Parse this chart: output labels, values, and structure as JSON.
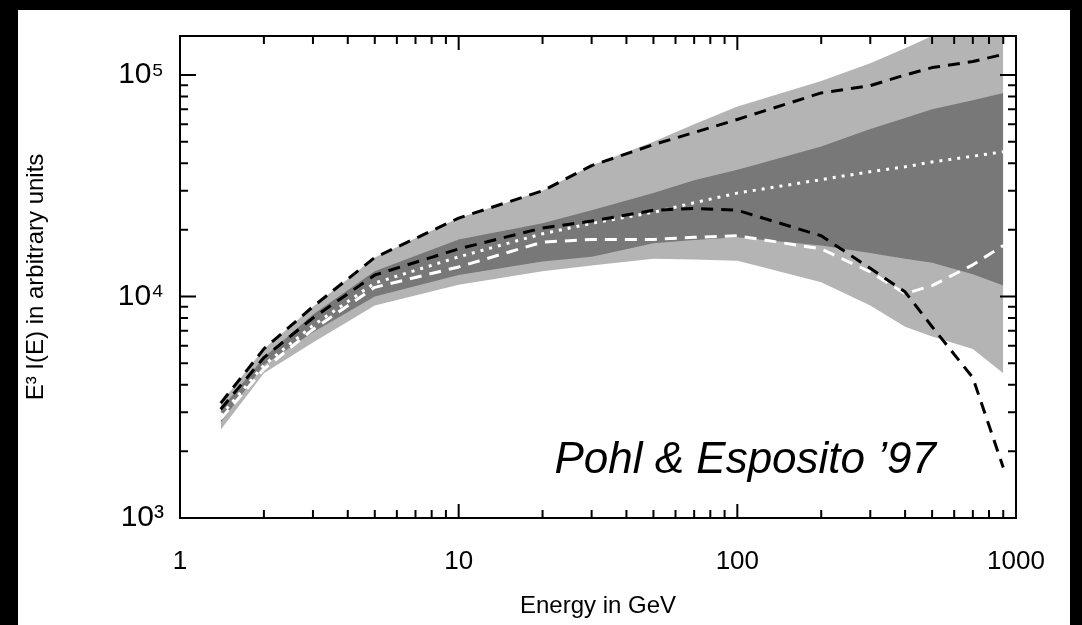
{
  "chart_data": {
    "type": "line",
    "xlabel": "Energy in GeV",
    "ylabel": "E³ I(E) in arbitrary units",
    "log": "xy",
    "x": [
      1.4,
      2,
      3,
      5,
      10,
      20,
      30,
      50,
      70,
      100,
      200,
      300,
      400,
      500,
      700,
      900
    ],
    "xlim": [
      1,
      1000
    ],
    "xticks": [
      1,
      {
        "value": 2,
        "label": null
      },
      {
        "value": 3,
        "label": null
      },
      {
        "value": 4,
        "label": null
      },
      {
        "value": 5,
        "label": null
      },
      {
        "value": 6,
        "label": null
      },
      {
        "value": 7,
        "label": null
      },
      {
        "value": 8,
        "label": null
      },
      {
        "value": 9,
        "label": null
      },
      10,
      {
        "value": 20,
        "label": null
      },
      {
        "value": 30,
        "label": null
      },
      {
        "value": 40,
        "label": null
      },
      {
        "value": 50,
        "label": null
      },
      {
        "value": 60,
        "label": null
      },
      {
        "value": 70,
        "label": null
      },
      {
        "value": 80,
        "label": null
      },
      {
        "value": 90,
        "label": null
      },
      100,
      {
        "value": 200,
        "label": null
      },
      {
        "value": 300,
        "label": null
      },
      {
        "value": 400,
        "label": null
      },
      {
        "value": 500,
        "label": null
      },
      {
        "value": 600,
        "label": null
      },
      {
        "value": 700,
        "label": null
      },
      {
        "value": 800,
        "label": null
      },
      {
        "value": 900,
        "label": null
      },
      1000
    ],
    "ylim": [
      1000,
      150000
    ],
    "yticks": [
      {
        "value": 1000,
        "label": "10³"
      },
      {
        "value": 2000,
        "label": null
      },
      {
        "value": 3000,
        "label": null
      },
      {
        "value": 4000,
        "label": null
      },
      {
        "value": 5000,
        "label": null
      },
      {
        "value": 6000,
        "label": null
      },
      {
        "value": 7000,
        "label": null
      },
      {
        "value": 8000,
        "label": null
      },
      {
        "value": 9000,
        "label": null
      },
      {
        "value": 10000,
        "label": "10⁴"
      },
      {
        "value": 20000,
        "label": null
      },
      {
        "value": 30000,
        "label": null
      },
      {
        "value": 40000,
        "label": null
      },
      {
        "value": 50000,
        "label": null
      },
      {
        "value": 60000,
        "label": null
      },
      {
        "value": 70000,
        "label": null
      },
      {
        "value": 80000,
        "label": null
      },
      {
        "value": 90000,
        "label": null
      },
      {
        "value": 100000,
        "label": "10⁵"
      }
    ],
    "series": [
      {
        "color": "#ffffff",
        "line_style": "dashed",
        "values": [
          2800,
          4700,
          7100,
          11000,
          13600,
          17600,
          18100,
          18100,
          18500,
          18800,
          16400,
          12900,
          10300,
          11200,
          13900,
          17000
        ],
        "lower": [
          2500,
          4500,
          6200,
          9100,
          11300,
          13000,
          13800,
          14800,
          14700,
          14500,
          11600,
          9100,
          7300,
          6600,
          5800,
          4500
        ],
        "upper": [
          3300,
          5800,
          9000,
          15000,
          22600,
          30000,
          39000,
          50000,
          60000,
          72000,
          94000,
          113000,
          132000,
          150000,
          150000,
          150000
        ]
      },
      {
        "color": "#ffffff",
        "line_style": "dotted",
        "values": [
          2900,
          4900,
          7400,
          11500,
          15100,
          19200,
          21400,
          24000,
          26500,
          29300,
          33700,
          36600,
          38500,
          40500,
          43000,
          45000
        ],
        "lower": [
          2700,
          4900,
          6900,
          10000,
          12500,
          14400,
          15100,
          17400,
          18000,
          18500,
          17000,
          15700,
          14800,
          14200,
          12600,
          11200
        ],
        "upper": [
          3100,
          5300,
          8300,
          13000,
          18100,
          21400,
          24500,
          29300,
          33500,
          37300,
          47500,
          57000,
          64000,
          70000,
          77000,
          83000
        ]
      },
      {
        "color": "#000000",
        "line_style": "dashed",
        "values": [
          3300,
          5800,
          9000,
          15000,
          22600,
          30000,
          39000,
          48500,
          55000,
          63000,
          83000,
          89600,
          100000,
          108000,
          115000,
          124000
        ]
      },
      {
        "color": "#000000",
        "line_style": "dashed",
        "values": [
          3100,
          5300,
          8000,
          12500,
          16400,
          20400,
          21900,
          24500,
          25000,
          24500,
          18800,
          13400,
          10500,
          7300,
          4300,
          1690
        ]
      }
    ],
    "annotations": [
      "Pohl & Esposito ’97"
    ]
  }
}
